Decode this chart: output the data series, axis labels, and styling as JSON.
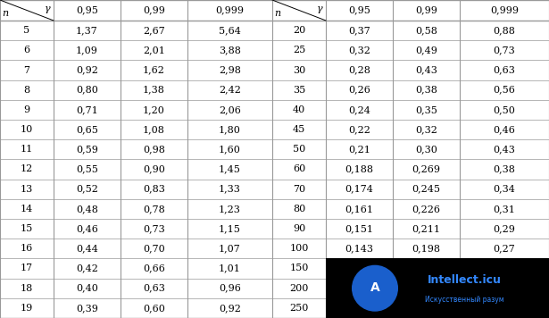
{
  "left_n": [
    "5",
    "6",
    "7",
    "8",
    "9",
    "10",
    "11",
    "12",
    "13",
    "14",
    "15",
    "16",
    "17",
    "18",
    "19"
  ],
  "left_095": [
    "1,37",
    "1,09",
    "0,92",
    "0,80",
    "0,71",
    "0,65",
    "0,59",
    "0,55",
    "0,52",
    "0,48",
    "0,46",
    "0,44",
    "0,42",
    "0,40",
    "0,39"
  ],
  "left_099": [
    "2,67",
    "2,01",
    "1,62",
    "1,38",
    "1,20",
    "1,08",
    "0,98",
    "0,90",
    "0,83",
    "0,78",
    "0,73",
    "0,70",
    "0,66",
    "0,63",
    "0,60"
  ],
  "left_0999": [
    "5,64",
    "3,88",
    "2,98",
    "2,42",
    "2,06",
    "1,80",
    "1,60",
    "1,45",
    "1,33",
    "1,23",
    "1,15",
    "1,07",
    "1,01",
    "0,96",
    "0,92"
  ],
  "right_n": [
    "20",
    "25",
    "30",
    "35",
    "40",
    "45",
    "50",
    "60",
    "70",
    "80",
    "90",
    "100",
    "150",
    "200",
    "250"
  ],
  "right_095": [
    "0,37",
    "0,32",
    "0,28",
    "0,26",
    "0,24",
    "0,22",
    "0,21",
    "0,188",
    "0,174",
    "0,161",
    "0,151",
    "0,143",
    "",
    "",
    ""
  ],
  "right_099": [
    "0,58",
    "0,49",
    "0,43",
    "0,38",
    "0,35",
    "0,32",
    "0,30",
    "0,269",
    "0,245",
    "0,226",
    "0,211",
    "0,198",
    "",
    "",
    ""
  ],
  "right_0999": [
    "0,88",
    "0,73",
    "0,63",
    "0,56",
    "0,50",
    "0,46",
    "0,43",
    "0,38",
    "0,34",
    "0,31",
    "0,29",
    "0,27",
    "",
    "",
    ""
  ],
  "header_vals": [
    "0,95",
    "0,99",
    "0,999"
  ],
  "bg_color": "#ffffff",
  "line_color": "#999999",
  "text_color": "#000000",
  "logo_bg": "#000000",
  "logo_circle_color": "#1a5fcc",
  "logo_text_color": "#3388ff",
  "logo_subtext_color": "#3388ff",
  "logo_text": "Intellect.icu",
  "logo_subtext": "Искусственный разум",
  "logo_letter": "A",
  "val_fontsize": 8,
  "header_fontsize": 8,
  "gamma_fontsize": 8,
  "n_fontsize": 8
}
